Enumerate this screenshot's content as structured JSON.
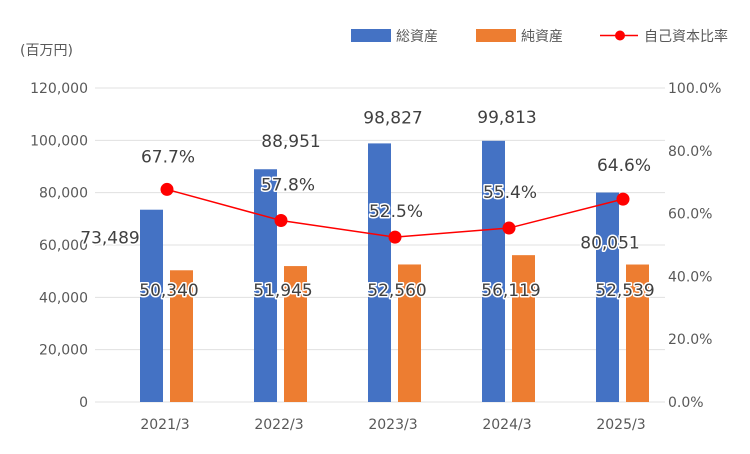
{
  "chart_data": {
    "type": "bar",
    "unit_label": "(百万円)",
    "categories": [
      "2021/3",
      "2022/3",
      "2023/3",
      "2024/3",
      "2025/3"
    ],
    "series": [
      {
        "name": "総資産",
        "type": "bar",
        "axis": "left",
        "color": "#4472C4",
        "values": [
          73489,
          88951,
          98827,
          99813,
          80051
        ],
        "labels": [
          "73,489",
          "88,951",
          "98,827",
          "99,813",
          "80,051"
        ]
      },
      {
        "name": "純資産",
        "type": "bar",
        "axis": "left",
        "color": "#ED7D31",
        "values": [
          50340,
          51945,
          52560,
          56119,
          52539
        ],
        "labels": [
          "50,340",
          "51,945",
          "52,560",
          "56,119",
          "52,539"
        ]
      },
      {
        "name": "自己資本比率",
        "type": "line",
        "axis": "right",
        "color": "#FF0000",
        "values": [
          67.7,
          57.8,
          52.5,
          55.4,
          64.6
        ],
        "labels": [
          "67.7%",
          "57.8%",
          "52.5%",
          "55.4%",
          "64.6%"
        ]
      }
    ],
    "y_left": {
      "min": 0,
      "max": 120000,
      "ticks": [
        "0",
        "20,000",
        "40,000",
        "60,000",
        "80,000",
        "100,000",
        "120,000"
      ]
    },
    "y_right": {
      "min": 0,
      "max": 100,
      "ticks": [
        "0.0%",
        "20.0%",
        "40.0%",
        "60.0%",
        "80.0%",
        "100.0%"
      ]
    },
    "grid": true,
    "legend": "top-right"
  }
}
